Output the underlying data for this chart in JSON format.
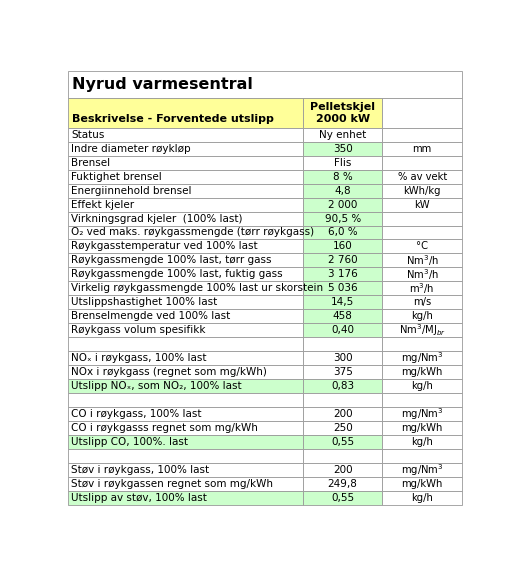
{
  "title": "Nyrud varmesentral",
  "header_col1": "Beskrivelse - Forventede utslipp",
  "header_col2": "Pelletskjel\n2000 kW",
  "rows": [
    {
      "desc": "Status",
      "val": "Ny enhet",
      "unit": "",
      "val_bg": "#ffffff",
      "desc_bg": "#ffffff"
    },
    {
      "desc": "Indre diameter røykløp",
      "val": "350",
      "unit": "mm",
      "val_bg": "#ccffcc",
      "desc_bg": "#ffffff"
    },
    {
      "desc": "Brensel",
      "val": "Flis",
      "unit": "",
      "val_bg": "#ffffff",
      "desc_bg": "#ffffff"
    },
    {
      "desc": "Fuktighet brensel",
      "val": "8 %",
      "unit": "% av vekt",
      "val_bg": "#ccffcc",
      "desc_bg": "#ffffff"
    },
    {
      "desc": "Energiinnehold brensel",
      "val": "4,8",
      "unit": "kWh/kg",
      "val_bg": "#ccffcc",
      "desc_bg": "#ffffff"
    },
    {
      "desc": "Effekt kjeler",
      "val": "2 000",
      "unit": "kW",
      "val_bg": "#ccffcc",
      "desc_bg": "#ffffff"
    },
    {
      "desc": "Virkningsgrad kjeler  (100% last)",
      "val": "90,5 %",
      "unit": "",
      "val_bg": "#ccffcc",
      "desc_bg": "#ffffff"
    },
    {
      "desc": "O₂ ved maks. røykgassmengde (tørr røykgass)",
      "val": "6,0 %",
      "unit": "",
      "val_bg": "#ccffcc",
      "desc_bg": "#ffffff"
    },
    {
      "desc": "Røykgasstemperatur ved 100% last",
      "val": "160",
      "unit": "°C",
      "val_bg": "#ccffcc",
      "desc_bg": "#ffffff"
    },
    {
      "desc": "Røykgassmengde 100% last, tørr gass",
      "val": "2 760",
      "unit": "Nm³/h",
      "val_bg": "#ccffcc",
      "desc_bg": "#ffffff"
    },
    {
      "desc": "Røykgassmengde 100% last, fuktig gass",
      "val": "3 176",
      "unit": "Nm³/h",
      "val_bg": "#ccffcc",
      "desc_bg": "#ffffff"
    },
    {
      "desc": "Virkelig røykgassmengde 100% last ur skorstein",
      "val": "5 036",
      "unit": "m³/h",
      "val_bg": "#ccffcc",
      "desc_bg": "#ffffff"
    },
    {
      "desc": "Utslippshastighet 100% last",
      "val": "14,5",
      "unit": "m/s",
      "val_bg": "#ccffcc",
      "desc_bg": "#ffffff"
    },
    {
      "desc": "Brenselmengde ved 100% last",
      "val": "458",
      "unit": "kg/h",
      "val_bg": "#ccffcc",
      "desc_bg": "#ffffff"
    },
    {
      "desc": "Røykgass volum spesifikk",
      "val": "0,40",
      "unit": "Nm³/MJ_br",
      "val_bg": "#ccffcc",
      "desc_bg": "#ffffff"
    },
    {
      "desc": "",
      "val": "",
      "unit": "",
      "val_bg": "#ffffff",
      "desc_bg": "#ffffff"
    },
    {
      "desc": "NOₓ i røykgass, 100% last",
      "val": "300",
      "unit": "mg/Nm³",
      "val_bg": "#ffffff",
      "desc_bg": "#ffffff"
    },
    {
      "desc": "NOx i røykgass (regnet som mg/kWh)",
      "val": "375",
      "unit": "mg/kWh",
      "val_bg": "#ffffff",
      "desc_bg": "#ffffff"
    },
    {
      "desc": "Utslipp NOₓ, som NO₂, 100% last",
      "val": "0,83",
      "unit": "kg/h",
      "val_bg": "#ccffcc",
      "desc_bg": "#ccffcc"
    },
    {
      "desc": "",
      "val": "",
      "unit": "",
      "val_bg": "#ffffff",
      "desc_bg": "#ffffff"
    },
    {
      "desc": "CO i røykgass, 100% last",
      "val": "200",
      "unit": "mg/Nm³",
      "val_bg": "#ffffff",
      "desc_bg": "#ffffff"
    },
    {
      "desc": "CO i røykgasss regnet som mg/kWh",
      "val": "250",
      "unit": "mg/kWh",
      "val_bg": "#ffffff",
      "desc_bg": "#ffffff"
    },
    {
      "desc": "Utslipp CO, 100%. last",
      "val": "0,55",
      "unit": "kg/h",
      "val_bg": "#ccffcc",
      "desc_bg": "#ccffcc"
    },
    {
      "desc": "",
      "val": "",
      "unit": "",
      "val_bg": "#ffffff",
      "desc_bg": "#ffffff"
    },
    {
      "desc": "Støv i røykgass, 100% last",
      "val": "200",
      "unit": "mg/Nm³",
      "val_bg": "#ffffff",
      "desc_bg": "#ffffff"
    },
    {
      "desc": "Støv i røykgassen regnet som mg/kWh",
      "val": "249,8",
      "unit": "mg/kWh",
      "val_bg": "#ffffff",
      "desc_bg": "#ffffff"
    },
    {
      "desc": "Utslipp av støv, 100% last",
      "val": "0,55",
      "unit": "kg/h",
      "val_bg": "#ccffcc",
      "desc_bg": "#ccffcc"
    }
  ],
  "header_bg": "#ffff99",
  "header_val_bg": "#ffff99",
  "border_color": "#999999",
  "title_fontsize": 11.5,
  "header_fontsize": 8.0,
  "row_fontsize": 7.5,
  "col_splits": [
    0.596,
    0.796
  ]
}
